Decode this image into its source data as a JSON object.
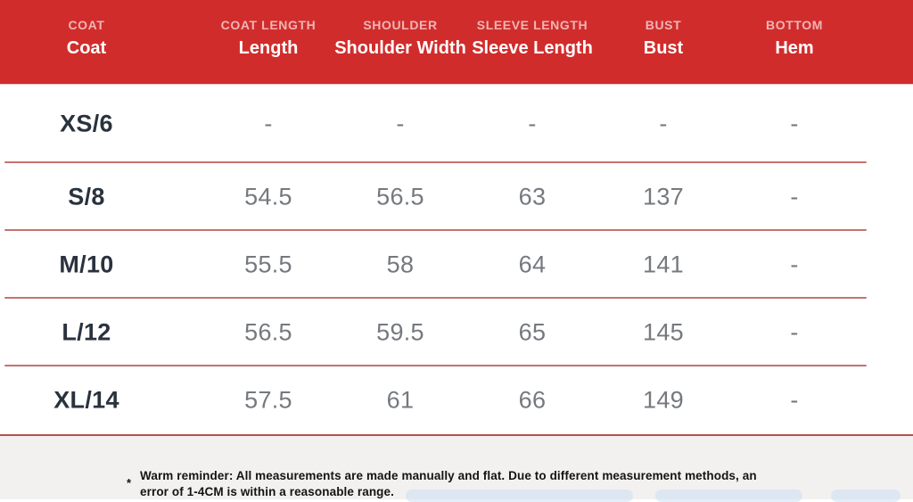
{
  "colors": {
    "header_bg": "#d12c2c",
    "header_subtext": "#f0b5b5",
    "header_text": "#ffffff",
    "row_divider": "#c4736e",
    "footer_divider": "#b6504a",
    "size_text": "#2a323e",
    "value_text": "#75797e",
    "footer_bg": "#f3f1ef",
    "note_text": "#141414"
  },
  "chart_data": {
    "type": "table",
    "columns": [
      {
        "en": "COAT",
        "label": "Coat"
      },
      {
        "en": "COAT LENGTH",
        "label": "Length"
      },
      {
        "en": "SHOULDER",
        "label": "Shoulder Width"
      },
      {
        "en": "SLEEVE LENGTH",
        "label": "Sleeve Length"
      },
      {
        "en": "BUST",
        "label": "Bust"
      },
      {
        "en": "BOTTOM",
        "label": "Hem"
      }
    ],
    "rows": [
      {
        "size": "XS/6",
        "values": [
          "-",
          "-",
          "-",
          "-",
          "-"
        ]
      },
      {
        "size": "S/8",
        "values": [
          "54.5",
          "56.5",
          "63",
          "137",
          "-"
        ]
      },
      {
        "size": "M/10",
        "values": [
          "55.5",
          "58",
          "64",
          "141",
          "-"
        ]
      },
      {
        "size": "L/12",
        "values": [
          "56.5",
          "59.5",
          "65",
          "145",
          "-"
        ]
      },
      {
        "size": "XL/14",
        "values": [
          "57.5",
          "61",
          "66",
          "149",
          "-"
        ]
      }
    ],
    "note": "Warm reminder: All measurements are made manually and flat. Due to different measurement methods, an error of 1-4CM is within a reasonable range."
  },
  "footer": {
    "star": "*",
    "note_line1": "Warm reminder: All measurements are made manually and flat. Due to different measurement methods, an",
    "note_line2": "error of 1-4CM is within a reasonable range."
  }
}
